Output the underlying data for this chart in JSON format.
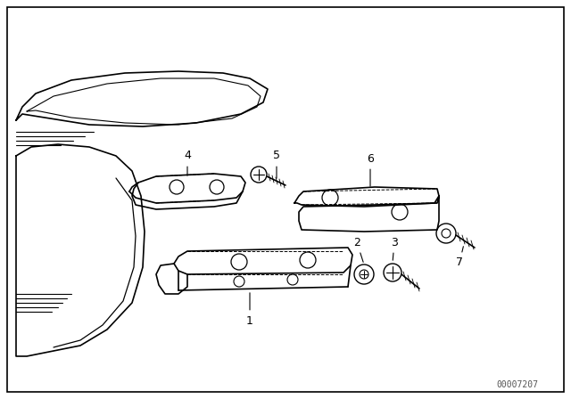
{
  "background_color": "#ffffff",
  "border_color": "#000000",
  "line_color": "#000000",
  "label_color": "#000000",
  "watermark_text": "00007207",
  "watermark_fontsize": 7
}
